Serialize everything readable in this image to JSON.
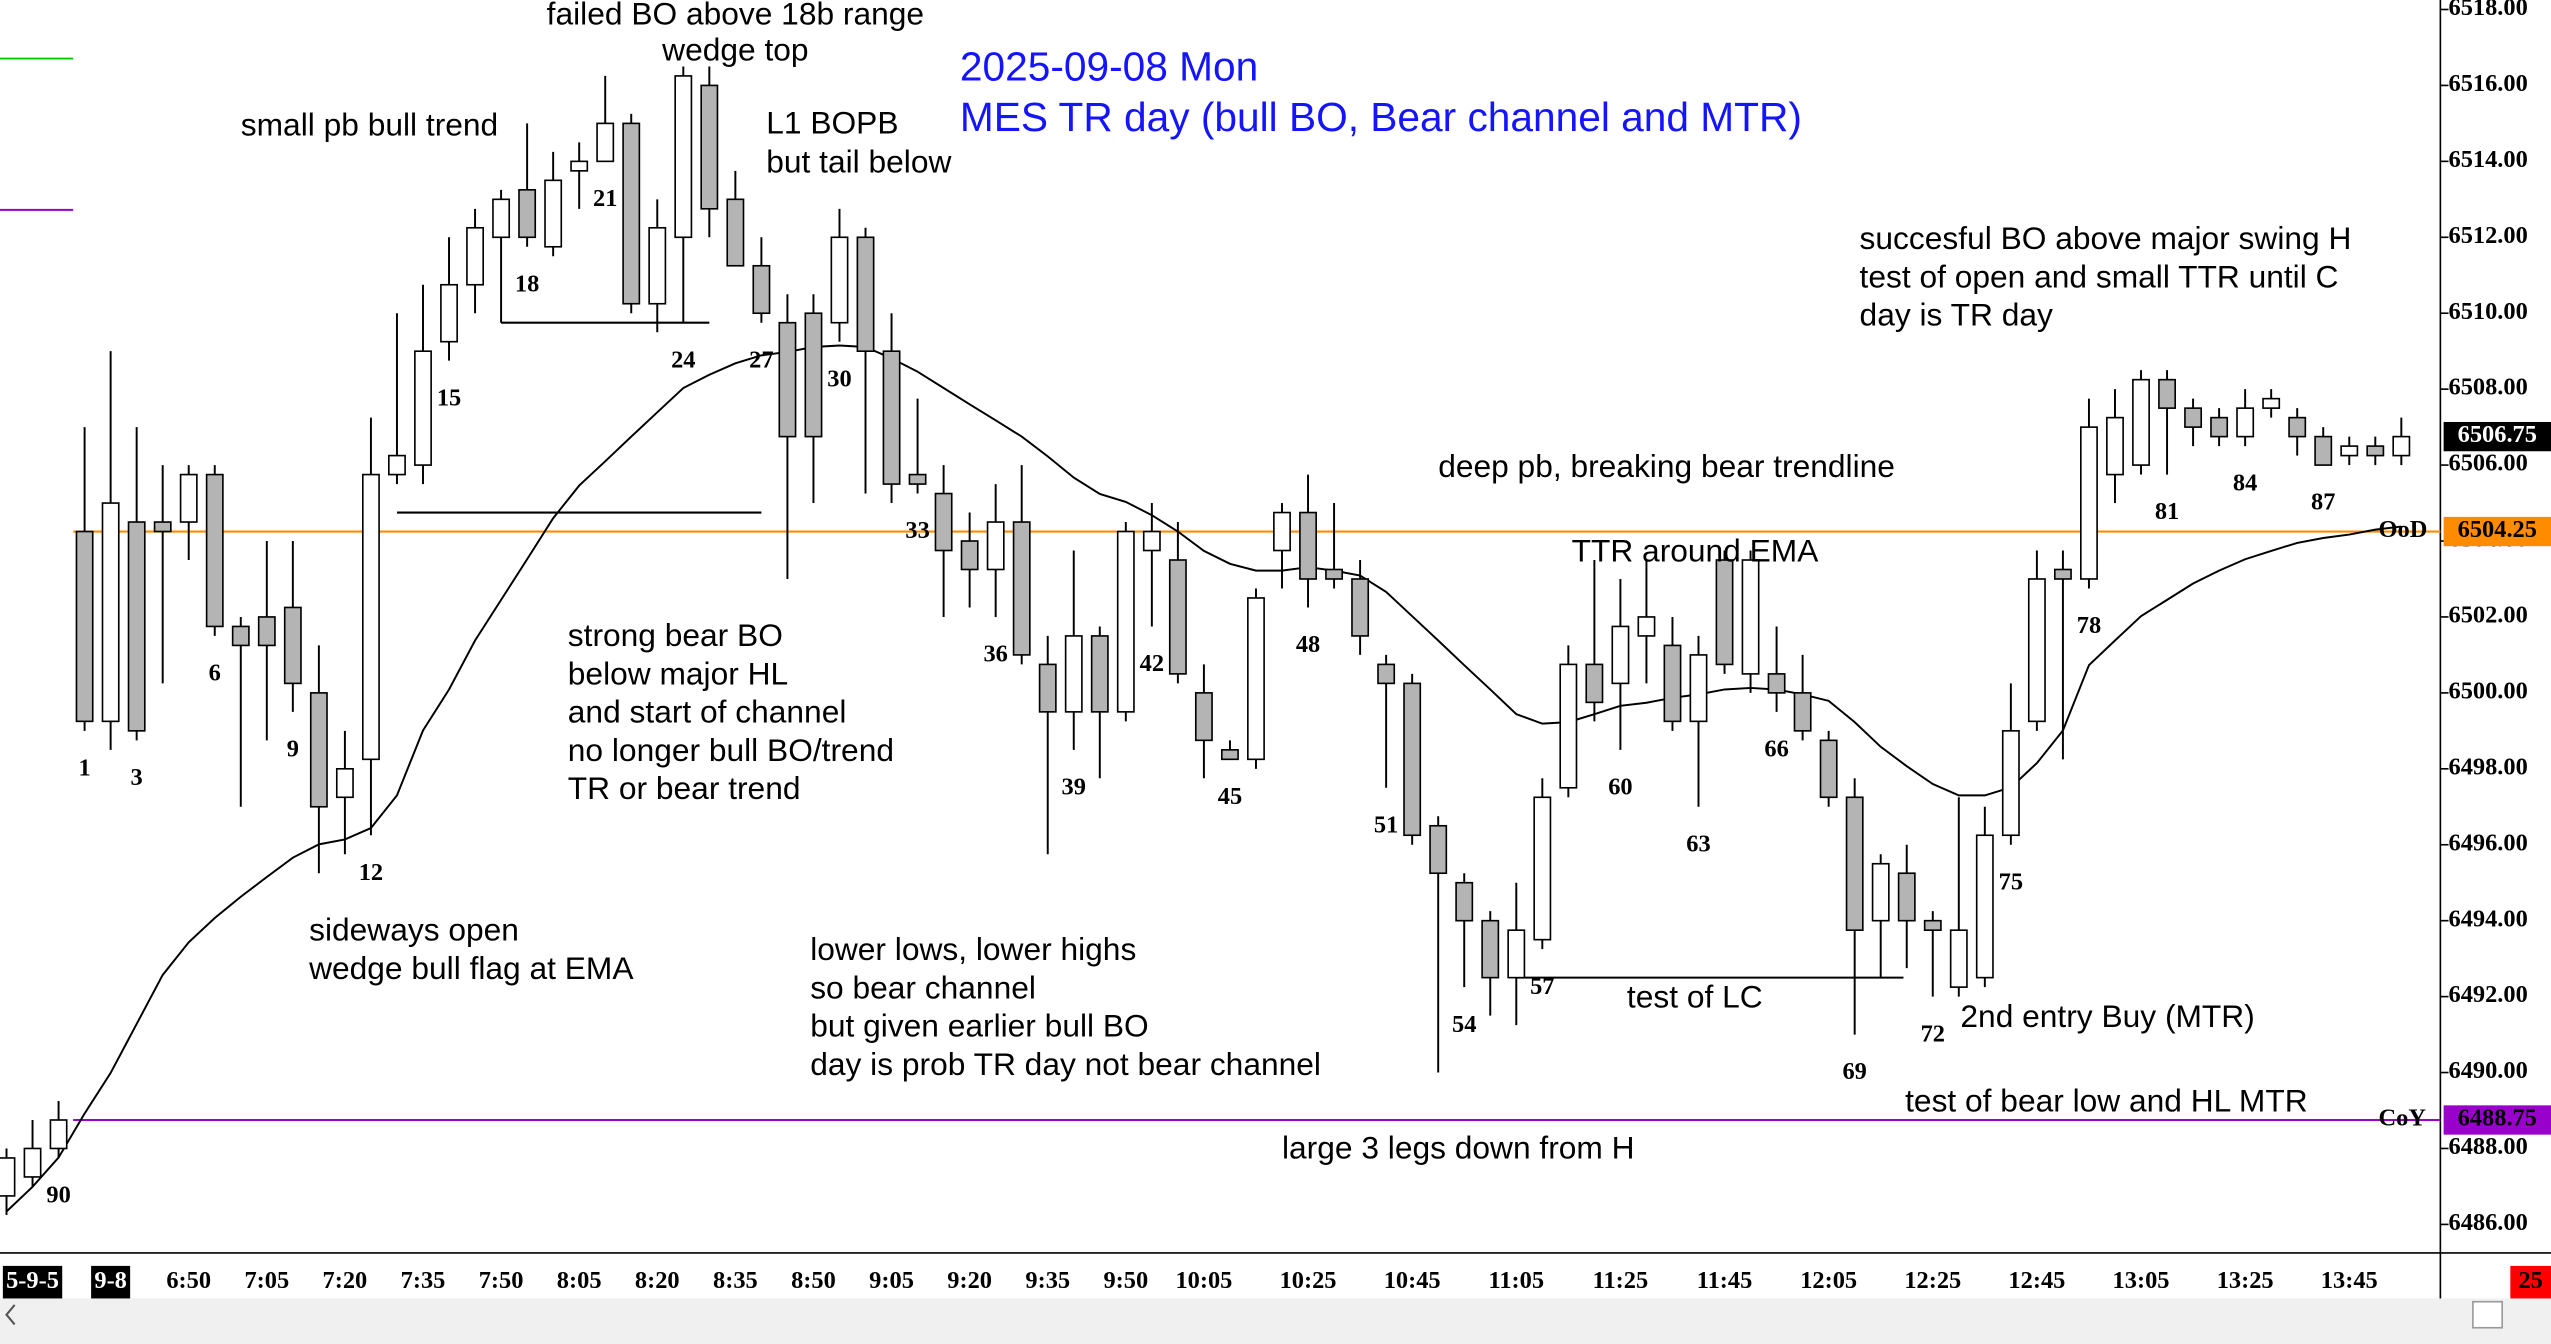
{
  "chart_data": {
    "type": "candlestick",
    "title": [
      "2025-09-08 Mon",
      "MES TR day (bull BO, Bear channel and MTR)"
    ],
    "categories": [
      null,
      "5-9-5",
      null,
      null,
      "9-8",
      null,
      null,
      "6:50",
      null,
      null,
      "7:05",
      null,
      null,
      "7:20",
      null,
      null,
      "7:35",
      null,
      null,
      "7:50",
      null,
      null,
      "8:05",
      null,
      null,
      "8:20",
      null,
      null,
      "8:35",
      null,
      null,
      "8:50",
      null,
      null,
      "9:05",
      null,
      null,
      "9:20",
      null,
      null,
      "9:35",
      null,
      null,
      "9:50",
      null,
      null,
      "10:05",
      null,
      null,
      null,
      "10:25",
      null,
      null,
      null,
      "10:45",
      null,
      null,
      null,
      "11:05",
      null,
      null,
      null,
      "11:25",
      null,
      null,
      null,
      "11:45",
      null,
      null,
      null,
      "12:05",
      null,
      null,
      null,
      "12:25",
      null,
      null,
      null,
      "12:45",
      null,
      null,
      null,
      "13:05",
      null,
      null,
      null,
      "13:25",
      null,
      null,
      null,
      "13:45",
      null,
      null
    ],
    "ohlc": [
      [
        6486.75,
        6488.0,
        6486.25,
        6487.75
      ],
      [
        6487.25,
        6488.75,
        6487.0,
        6488.0
      ],
      [
        6488.0,
        6489.25,
        6487.75,
        6488.75
      ],
      [
        6504.25,
        6507.0,
        6499.0,
        6499.25
      ],
      [
        6499.25,
        6509.0,
        6498.5,
        6505.0
      ],
      [
        6504.5,
        6507.0,
        6498.75,
        6499.0
      ],
      [
        6504.5,
        6506.0,
        6500.25,
        6504.25
      ],
      [
        6504.5,
        6506.0,
        6503.5,
        6505.75
      ],
      [
        6505.75,
        6506.0,
        6501.5,
        6501.75
      ],
      [
        6501.75,
        6502.0,
        6497.0,
        6501.25
      ],
      [
        6502.0,
        6504.0,
        6498.75,
        6501.25
      ],
      [
        6502.25,
        6504.0,
        6499.5,
        6500.25
      ],
      [
        6500.0,
        6501.25,
        6495.25,
        6497.0
      ],
      [
        6497.25,
        6499.0,
        6495.75,
        6498.0
      ],
      [
        6498.25,
        6507.25,
        6496.25,
        6505.75
      ],
      [
        6505.75,
        6510.0,
        6505.5,
        6506.25
      ],
      [
        6506.0,
        6510.75,
        6505.5,
        6509.0
      ],
      [
        6509.25,
        6512.0,
        6508.75,
        6510.75
      ],
      [
        6510.75,
        6512.75,
        6510.0,
        6512.25
      ],
      [
        6512.0,
        6513.25,
        6509.75,
        6513.0
      ],
      [
        6513.25,
        6515.0,
        6511.75,
        6512.0
      ],
      [
        6511.75,
        6514.25,
        6511.5,
        6513.5
      ],
      [
        6513.75,
        6514.5,
        6512.75,
        6514.0
      ],
      [
        6514.0,
        6516.25,
        6514.0,
        6515.0
      ],
      [
        6515.0,
        6515.25,
        6510.0,
        6510.25
      ],
      [
        6510.25,
        6513.0,
        6509.5,
        6512.25
      ],
      [
        6512.0,
        6516.5,
        6509.75,
        6516.25
      ],
      [
        6516.0,
        6516.5,
        6512.0,
        6512.75
      ],
      [
        6513.0,
        6513.75,
        6511.25,
        6511.25
      ],
      [
        6511.25,
        6512.0,
        6509.75,
        6510.0
      ],
      [
        6509.75,
        6510.5,
        6503.0,
        6506.75
      ],
      [
        6510.0,
        6510.5,
        6505.0,
        6506.75
      ],
      [
        6509.75,
        6512.75,
        6509.25,
        6512.0
      ],
      [
        6512.0,
        6512.25,
        6505.25,
        6509.0
      ],
      [
        6509.0,
        6510.0,
        6505.0,
        6505.5
      ],
      [
        6505.75,
        6507.75,
        6505.25,
        6505.5
      ],
      [
        6505.25,
        6506.0,
        6502.0,
        6503.75
      ],
      [
        6504.0,
        6504.75,
        6502.25,
        6503.25
      ],
      [
        6503.25,
        6505.5,
        6502.0,
        6504.5
      ],
      [
        6504.5,
        6506.0,
        6500.75,
        6501.0
      ],
      [
        6500.75,
        6501.5,
        6495.75,
        6499.5
      ],
      [
        6499.5,
        6503.75,
        6498.5,
        6501.5
      ],
      [
        6501.5,
        6501.75,
        6497.75,
        6499.5
      ],
      [
        6499.5,
        6504.5,
        6499.25,
        6504.25
      ],
      [
        6503.75,
        6505.0,
        6501.75,
        6504.25
      ],
      [
        6503.5,
        6504.5,
        6500.25,
        6500.5
      ],
      [
        6500.0,
        6500.75,
        6497.75,
        6498.75
      ],
      [
        6498.5,
        6498.75,
        6498.25,
        6498.25
      ],
      [
        6498.25,
        6502.75,
        6498.0,
        6502.5
      ],
      [
        6503.75,
        6505.0,
        6502.75,
        6504.75
      ],
      [
        6504.75,
        6505.75,
        6502.25,
        6503.0
      ],
      [
        6503.25,
        6505.0,
        6502.75,
        6503.0
      ],
      [
        6503.0,
        6503.5,
        6501.0,
        6501.5
      ],
      [
        6500.75,
        6501.0,
        6497.5,
        6500.25
      ],
      [
        6500.25,
        6500.5,
        6496.0,
        6496.25
      ],
      [
        6496.5,
        6496.75,
        6490.0,
        6495.25
      ],
      [
        6495.0,
        6495.25,
        6492.25,
        6494.0
      ],
      [
        6494.0,
        6494.25,
        6491.5,
        6492.5
      ],
      [
        6492.5,
        6495.0,
        6491.25,
        6493.75
      ],
      [
        6493.5,
        6497.75,
        6493.25,
        6497.25
      ],
      [
        6497.5,
        6501.25,
        6497.25,
        6500.75
      ],
      [
        6500.75,
        6503.5,
        6499.25,
        6499.75
      ],
      [
        6500.25,
        6503.0,
        6498.5,
        6501.75
      ],
      [
        6501.5,
        6503.5,
        6500.25,
        6502.0
      ],
      [
        6501.25,
        6502.0,
        6499.0,
        6499.25
      ],
      [
        6499.25,
        6501.5,
        6497.0,
        6501.0
      ],
      [
        6503.5,
        6503.75,
        6500.5,
        6500.75
      ],
      [
        6500.5,
        6503.75,
        6500.0,
        6503.5
      ],
      [
        6500.5,
        6501.75,
        6499.5,
        6500.0
      ],
      [
        6500.0,
        6501.0,
        6498.75,
        6499.0
      ],
      [
        6498.75,
        6499.0,
        6497.0,
        6497.25
      ],
      [
        6497.25,
        6497.75,
        6491.0,
        6493.75
      ],
      [
        6494.0,
        6495.75,
        6492.5,
        6495.5
      ],
      [
        6495.25,
        6496.0,
        6492.75,
        6494.0
      ],
      [
        6494.0,
        6494.25,
        6492.0,
        6493.75
      ],
      [
        6492.25,
        6497.25,
        6492.0,
        6493.75
      ],
      [
        6492.5,
        6497.0,
        6492.25,
        6496.25
      ],
      [
        6496.25,
        6500.25,
        6496.0,
        6499.0
      ],
      [
        6499.25,
        6503.75,
        6499.0,
        6503.0
      ],
      [
        6503.25,
        6503.75,
        6498.25,
        6503.0
      ],
      [
        6503.0,
        6507.75,
        6502.75,
        6507.0
      ],
      [
        6505.75,
        6508.0,
        6505.0,
        6507.25
      ],
      [
        6506.0,
        6508.5,
        6505.75,
        6508.25
      ],
      [
        6508.25,
        6508.5,
        6505.75,
        6507.5
      ],
      [
        6507.5,
        6507.75,
        6506.5,
        6507.0
      ],
      [
        6507.25,
        6507.5,
        6506.5,
        6506.75
      ],
      [
        6506.75,
        6508.0,
        6506.5,
        6507.5
      ],
      [
        6507.5,
        6508.0,
        6507.25,
        6507.75
      ],
      [
        6507.25,
        6507.5,
        6506.25,
        6506.75
      ],
      [
        6506.75,
        6507.0,
        6506.0,
        6506.0
      ],
      [
        6506.25,
        6506.75,
        6506.0,
        6506.5
      ],
      [
        6506.5,
        6506.75,
        6506.0,
        6506.25
      ],
      [
        6506.25,
        6507.25,
        6506.0,
        6506.75
      ]
    ],
    "bar_numbers": [
      null,
      null,
      90,
      1,
      null,
      3,
      null,
      null,
      6,
      null,
      null,
      9,
      null,
      null,
      12,
      null,
      null,
      15,
      null,
      null,
      18,
      null,
      null,
      21,
      null,
      null,
      24,
      null,
      null,
      27,
      null,
      null,
      30,
      null,
      null,
      33,
      null,
      null,
      36,
      null,
      null,
      39,
      null,
      null,
      42,
      null,
      null,
      45,
      null,
      null,
      48,
      null,
      null,
      51,
      null,
      null,
      54,
      null,
      null,
      57,
      null,
      null,
      60,
      null,
      null,
      63,
      null,
      null,
      66,
      null,
      null,
      69,
      null,
      null,
      72,
      null,
      null,
      75,
      null,
      null,
      78,
      null,
      null,
      81,
      null,
      null,
      84,
      null,
      null,
      87,
      null,
      null,
      null
    ],
    "ema": [
      6486.34,
      6486.99,
      6487.76,
      6488.92,
      6489.99,
      6491.28,
      6492.57,
      6493.43,
      6494.07,
      6494.63,
      6495.15,
      6495.66,
      6496.01,
      6496.14,
      6496.44,
      6497.3,
      6499.01,
      6500.09,
      6501.38,
      6502.45,
      6503.52,
      6504.6,
      6505.46,
      6506.1,
      6506.75,
      6507.39,
      6508.03,
      6508.38,
      6508.68,
      6508.89,
      6508.98,
      6509.11,
      6509.15,
      6509.11,
      6508.81,
      6508.46,
      6508.03,
      6507.6,
      6507.18,
      6506.75,
      6506.23,
      6505.67,
      6505.24,
      6505.03,
      6504.68,
      6504.25,
      6503.74,
      6503.4,
      6503.22,
      6503.22,
      6503.31,
      6503.22,
      6503.09,
      6502.66,
      6502.02,
      6501.38,
      6500.73,
      6500.09,
      6499.44,
      6499.19,
      6499.23,
      6499.44,
      6499.66,
      6499.74,
      6499.87,
      6499.96,
      6500.09,
      6500.13,
      6500.09,
      6499.96,
      6499.79,
      6499.23,
      6498.58,
      6498.07,
      6497.6,
      6497.3,
      6497.3,
      6497.51,
      6498.15,
      6499.01,
      6500.73,
      6501.38,
      6502.02,
      6502.45,
      6502.88,
      6503.22,
      6503.52,
      6503.74,
      6503.95,
      6504.08,
      6504.17,
      6504.3,
      6504.38
    ],
    "colors": {
      "up": "#ffffff",
      "down": "#b4b4b4",
      "ema": "#000000"
    },
    "ylim": [
      6485.25,
      6518.25
    ],
    "yticks": [
      {
        "value": 6486,
        "label": "6486.00"
      },
      {
        "value": 6488,
        "label": "6488.00"
      },
      {
        "value": 6490,
        "label": "6490.00"
      },
      {
        "value": 6492,
        "label": "6492.00"
      },
      {
        "value": 6494,
        "label": "6494.00"
      },
      {
        "value": 6496,
        "label": "6496.00"
      },
      {
        "value": 6498,
        "label": "6498.00"
      },
      {
        "value": 6500,
        "label": "6500.00"
      },
      {
        "value": 6502,
        "label": "6502.00"
      },
      {
        "value": 6504,
        "label": "6504.00"
      },
      {
        "value": 6506,
        "label": "6506.00"
      },
      {
        "value": 6508,
        "label": "6508.00"
      },
      {
        "value": 6510,
        "label": "6510.00"
      },
      {
        "value": 6512,
        "label": "6512.00"
      },
      {
        "value": 6514,
        "label": "6514.00"
      },
      {
        "value": 6516,
        "label": "6516.00"
      },
      {
        "value": 6518,
        "label": "6518.00"
      }
    ],
    "reference_lines": [
      {
        "label": "OoD",
        "value": 6504.25,
        "color": "#ff8c00"
      },
      {
        "label": "CoY",
        "value": 6488.75,
        "color": "#9900cc"
      }
    ],
    "last_price": 6506.75,
    "level_lines": [
      6509.75,
      6504.75,
      6492.5
    ],
    "annotations": [
      [
        "failed BO above 18b range",
        "wedge top"
      ],
      [
        "small pb bull trend"
      ],
      [
        "L1 BOPB",
        "but tail below"
      ],
      [
        "succesful BO above major swing H",
        "test of open and small TTR until C",
        "day is TR day"
      ],
      [
        "deep pb, breaking bear trendline"
      ],
      [
        "TTR around EMA"
      ],
      [
        "strong bear BO",
        "below major HL",
        "and start of channel",
        "no longer bull BO/trend",
        "TR or bear trend"
      ],
      [
        "sideways open",
        "wedge bull flag at EMA"
      ],
      [
        "lower lows, lower highs",
        "so bear channel",
        "but given earlier bull BO",
        "day is prob TR day not bear channel"
      ],
      [
        "test of LC"
      ],
      [
        "2nd entry Buy (MTR)"
      ],
      [
        "test of bear low and HL MTR"
      ],
      [
        "large 3 legs down from H"
      ]
    ],
    "corner_badge": "25"
  }
}
